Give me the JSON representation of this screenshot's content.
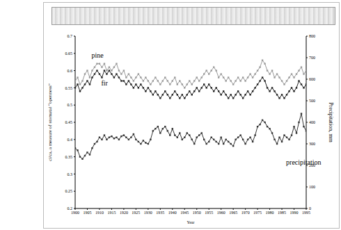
{
  "chart_data": {
    "type": "line",
    "xlabel": "Year",
    "ylabel": "ci/ca, a measure of stomatal “openness”",
    "y2label": "Precipitation, mm",
    "grid": false,
    "x": [
      1900,
      1901,
      1902,
      1903,
      1904,
      1905,
      1906,
      1907,
      1908,
      1909,
      1910,
      1911,
      1912,
      1913,
      1914,
      1915,
      1916,
      1917,
      1918,
      1919,
      1920,
      1921,
      1922,
      1923,
      1924,
      1925,
      1926,
      1927,
      1928,
      1929,
      1930,
      1931,
      1932,
      1933,
      1934,
      1935,
      1936,
      1937,
      1938,
      1939,
      1940,
      1941,
      1942,
      1943,
      1944,
      1945,
      1946,
      1947,
      1948,
      1949,
      1950,
      1951,
      1952,
      1953,
      1954,
      1955,
      1956,
      1957,
      1958,
      1959,
      1960,
      1961,
      1962,
      1963,
      1964,
      1965,
      1966,
      1967,
      1968,
      1969,
      1970,
      1971,
      1972,
      1973,
      1974,
      1975,
      1976,
      1977,
      1978,
      1979,
      1980,
      1981,
      1982,
      1983,
      1984,
      1985,
      1986,
      1987,
      1988,
      1989,
      1990,
      1991,
      1992,
      1993,
      1994,
      1995
    ],
    "xlim": [
      1900,
      1995
    ],
    "xticks": [
      1900,
      1905,
      1910,
      1915,
      1920,
      1925,
      1930,
      1935,
      1940,
      1945,
      1950,
      1955,
      1960,
      1965,
      1970,
      1975,
      1980,
      1985,
      1990,
      1995
    ],
    "ylim": [
      0.2,
      0.7
    ],
    "yticks": [
      0.2,
      0.25,
      0.3,
      0.35,
      0.4,
      0.45,
      0.5,
      0.55,
      0.6,
      0.65,
      0.7
    ],
    "y2lim": [
      0,
      800
    ],
    "y2ticks": [
      0,
      100,
      200,
      300,
      400,
      500,
      600,
      700,
      800
    ],
    "series": [
      {
        "name": "pine",
        "color": "#9a9a9a",
        "marker": "square",
        "values": [
          0.57,
          0.58,
          0.56,
          0.57,
          0.59,
          0.6,
          0.58,
          0.6,
          0.61,
          0.62,
          0.62,
          0.61,
          0.62,
          0.6,
          0.61,
          0.6,
          0.61,
          0.62,
          0.6,
          0.59,
          0.6,
          0.58,
          0.59,
          0.58,
          0.57,
          0.58,
          0.59,
          0.58,
          0.57,
          0.58,
          0.57,
          0.56,
          0.57,
          0.58,
          0.57,
          0.56,
          0.57,
          0.58,
          0.57,
          0.56,
          0.57,
          0.58,
          0.56,
          0.57,
          0.56,
          0.55,
          0.56,
          0.57,
          0.56,
          0.57,
          0.58,
          0.57,
          0.58,
          0.59,
          0.6,
          0.59,
          0.6,
          0.61,
          0.6,
          0.58,
          0.59,
          0.58,
          0.57,
          0.58,
          0.57,
          0.56,
          0.57,
          0.58,
          0.57,
          0.58,
          0.57,
          0.58,
          0.59,
          0.58,
          0.59,
          0.6,
          0.61,
          0.63,
          0.62,
          0.6,
          0.59,
          0.6,
          0.58,
          0.59,
          0.58,
          0.57,
          0.56,
          0.57,
          0.58,
          0.59,
          0.58,
          0.59,
          0.6,
          0.61,
          0.59,
          0.6
        ]
      },
      {
        "name": "fir",
        "color": "#222222",
        "marker": "square",
        "values": [
          0.55,
          0.56,
          0.54,
          0.55,
          0.56,
          0.57,
          0.56,
          0.58,
          0.59,
          0.6,
          0.59,
          0.58,
          0.6,
          0.59,
          0.6,
          0.59,
          0.58,
          0.59,
          0.58,
          0.57,
          0.57,
          0.56,
          0.57,
          0.56,
          0.55,
          0.56,
          0.55,
          0.56,
          0.55,
          0.54,
          0.55,
          0.54,
          0.53,
          0.54,
          0.53,
          0.52,
          0.53,
          0.54,
          0.53,
          0.52,
          0.53,
          0.54,
          0.53,
          0.52,
          0.53,
          0.52,
          0.53,
          0.54,
          0.53,
          0.54,
          0.55,
          0.54,
          0.55,
          0.56,
          0.55,
          0.56,
          0.55,
          0.54,
          0.55,
          0.54,
          0.53,
          0.54,
          0.53,
          0.52,
          0.53,
          0.52,
          0.53,
          0.54,
          0.53,
          0.52,
          0.53,
          0.54,
          0.53,
          0.54,
          0.55,
          0.56,
          0.57,
          0.58,
          0.57,
          0.55,
          0.54,
          0.55,
          0.54,
          0.53,
          0.52,
          0.53,
          0.52,
          0.53,
          0.54,
          0.55,
          0.54,
          0.55,
          0.57,
          0.56,
          0.55,
          0.56
        ]
      },
      {
        "name": "precipitation",
        "color": "#333333",
        "marker": "square",
        "axis": "y2",
        "values": [
          280,
          270,
          240,
          230,
          245,
          260,
          250,
          280,
          300,
          310,
          330,
          320,
          340,
          320,
          330,
          335,
          325,
          330,
          320,
          335,
          340,
          330,
          320,
          330,
          345,
          320,
          310,
          300,
          315,
          305,
          300,
          320,
          360,
          370,
          380,
          350,
          370,
          380,
          360,
          340,
          370,
          340,
          330,
          350,
          320,
          330,
          350,
          340,
          320,
          300,
          330,
          340,
          350,
          320,
          300,
          310,
          330,
          320,
          310,
          300,
          330,
          300,
          320,
          310,
          300,
          290,
          320,
          330,
          340,
          320,
          300,
          320,
          330,
          310,
          340,
          380,
          390,
          410,
          400,
          380,
          370,
          350,
          320,
          300,
          330,
          310,
          340,
          330,
          320,
          340,
          380,
          350,
          400,
          440,
          380,
          360
        ]
      }
    ],
    "annotations": [
      {
        "text": "pine",
        "x": 1905,
        "y": 0.645
      },
      {
        "text": "fir",
        "x": 1909,
        "y": 0.565
      },
      {
        "text": "precipitation",
        "x": 1985,
        "y": 0.335
      }
    ]
  }
}
